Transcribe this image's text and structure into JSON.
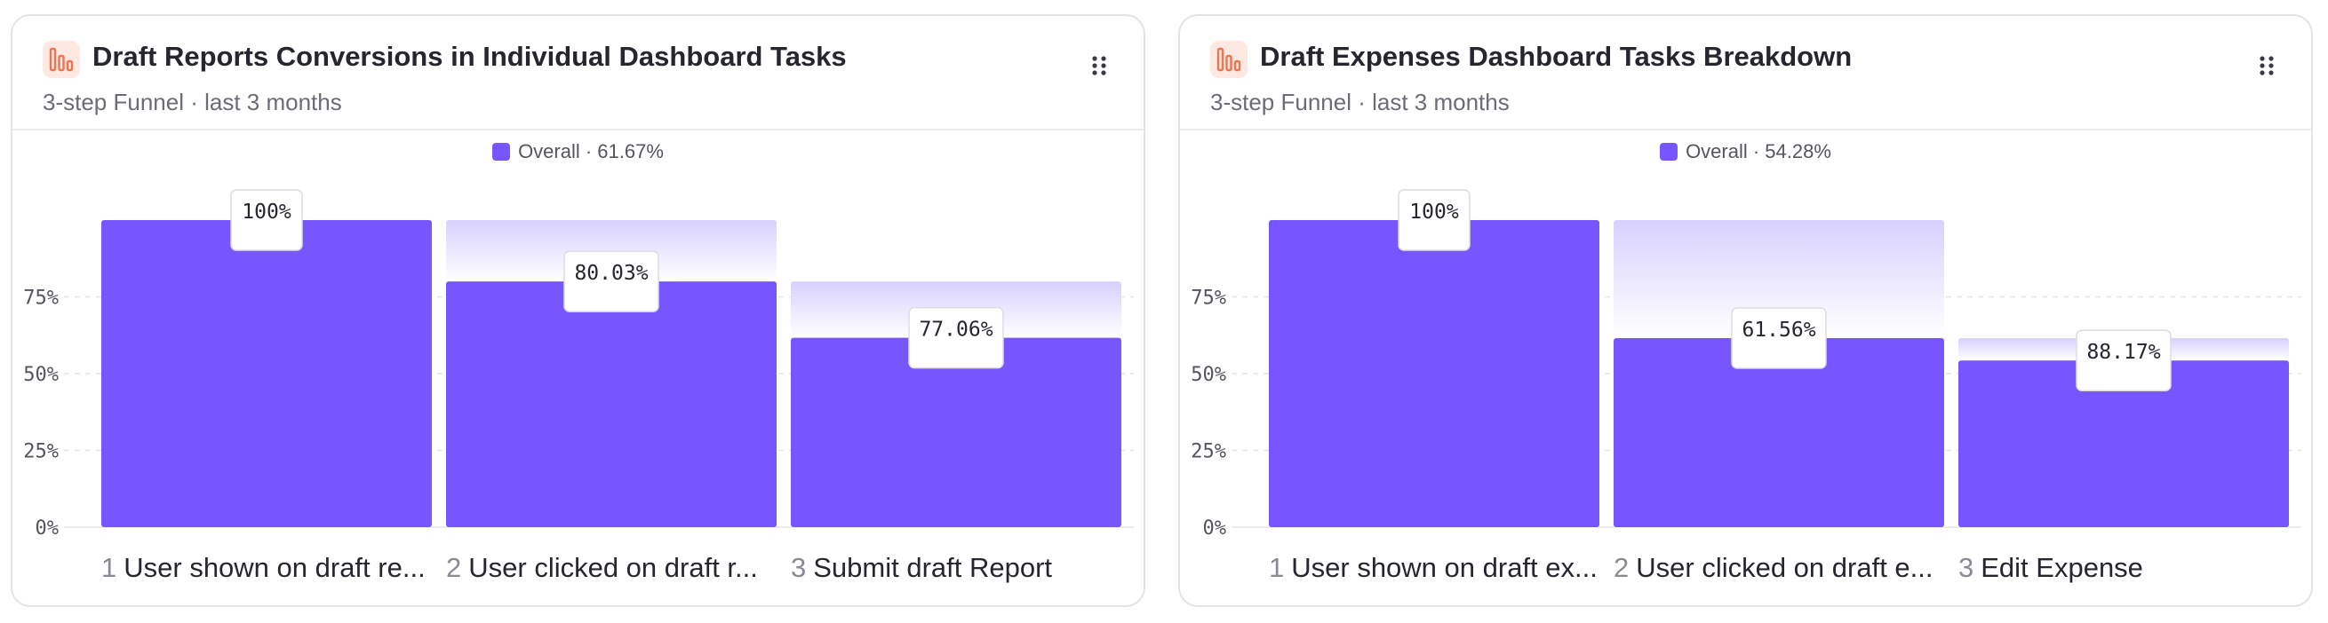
{
  "colors": {
    "bar": "#7856ff",
    "dropoff_top": "#d8d0ff",
    "dropoff_bottom": "#ffffff",
    "icon": "#f0734f"
  },
  "cards": [
    {
      "title": "Draft Reports Conversions in Individual Dashboard Tasks",
      "subtitle": "3-step Funnel · last 3 months",
      "icon": "funnel-chart-icon",
      "menu_icon": "drag-handle-icon",
      "legend": "Overall · 61.67%",
      "steps": [
        {
          "number": "1",
          "label": "User shown on draft re..."
        },
        {
          "number": "2",
          "label": "User clicked on draft r..."
        },
        {
          "number": "3",
          "label": "Submit draft Report"
        }
      ]
    },
    {
      "title": "Draft Expenses Dashboard Tasks Breakdown",
      "subtitle": "3-step Funnel · last 3 months",
      "icon": "funnel-chart-icon",
      "menu_icon": "drag-handle-icon",
      "legend": "Overall · 54.28%",
      "steps": [
        {
          "number": "1",
          "label": "User shown on draft ex..."
        },
        {
          "number": "2",
          "label": "User clicked on draft e..."
        },
        {
          "number": "3",
          "label": "Edit Expense"
        }
      ]
    }
  ],
  "chart_data": [
    {
      "type": "bar",
      "title": "Draft Reports Conversions in Individual Dashboard Tasks",
      "categories": [
        "User shown on draft re...",
        "User clicked on draft r...",
        "Submit draft Report"
      ],
      "series": [
        {
          "name": "Overall",
          "values": [
            100,
            80.03,
            61.67
          ]
        }
      ],
      "conversion_labels": [
        "100%",
        "80.03%",
        "77.06%"
      ],
      "previous_step_values": [
        100,
        100,
        80.03
      ],
      "ylim": [
        0,
        100
      ],
      "yticks": [
        0,
        25,
        50,
        75
      ],
      "ytick_labels": [
        "0%",
        "25%",
        "50%",
        "75%"
      ],
      "grid": true,
      "legend_position": "top-center"
    },
    {
      "type": "bar",
      "title": "Draft Expenses Dashboard Tasks Breakdown",
      "categories": [
        "User shown on draft ex...",
        "User clicked on draft e...",
        "Edit Expense"
      ],
      "series": [
        {
          "name": "Overall",
          "values": [
            100,
            61.56,
            54.28
          ]
        }
      ],
      "conversion_labels": [
        "100%",
        "61.56%",
        "88.17%"
      ],
      "previous_step_values": [
        100,
        100,
        61.56
      ],
      "ylim": [
        0,
        100
      ],
      "yticks": [
        0,
        25,
        50,
        75
      ],
      "ytick_labels": [
        "0%",
        "25%",
        "50%",
        "75%"
      ],
      "grid": true,
      "legend_position": "top-center"
    }
  ]
}
